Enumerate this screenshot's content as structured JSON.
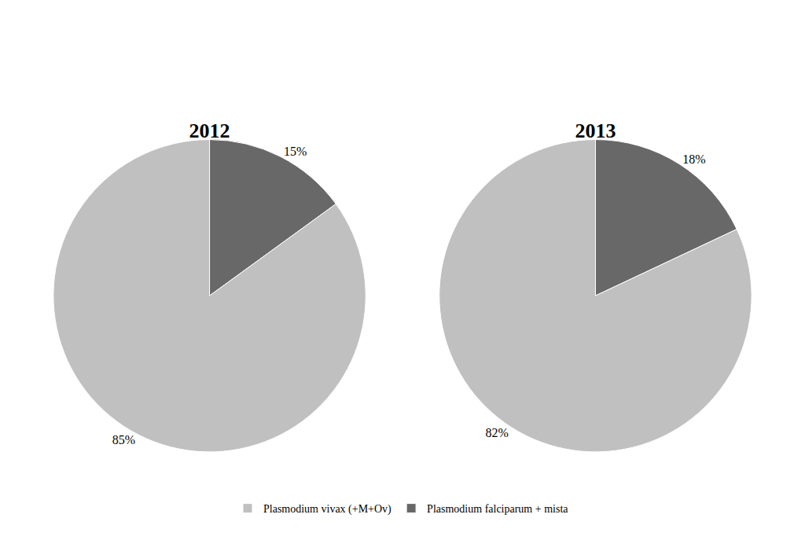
{
  "chart_data": [
    {
      "type": "pie",
      "title": "2012",
      "categories": [
        "Plasmodium falciparum + mista",
        "Plasmodium vivax (+M+Ov)"
      ],
      "values": [
        15,
        85
      ],
      "value_labels": [
        "15%",
        "85%"
      ],
      "colors": [
        "#686868",
        "#c0c0c0"
      ],
      "data_labels": true,
      "legend": "bottom"
    },
    {
      "type": "pie",
      "title": "2013",
      "categories": [
        "Plasmodium falciparum + mista",
        "Plasmodium vivax (+M+Ov)"
      ],
      "values": [
        18,
        82
      ],
      "value_labels": [
        "18%",
        "82%"
      ],
      "colors": [
        "#686868",
        "#c0c0c0"
      ],
      "data_labels": true,
      "legend": "bottom"
    }
  ]
}
